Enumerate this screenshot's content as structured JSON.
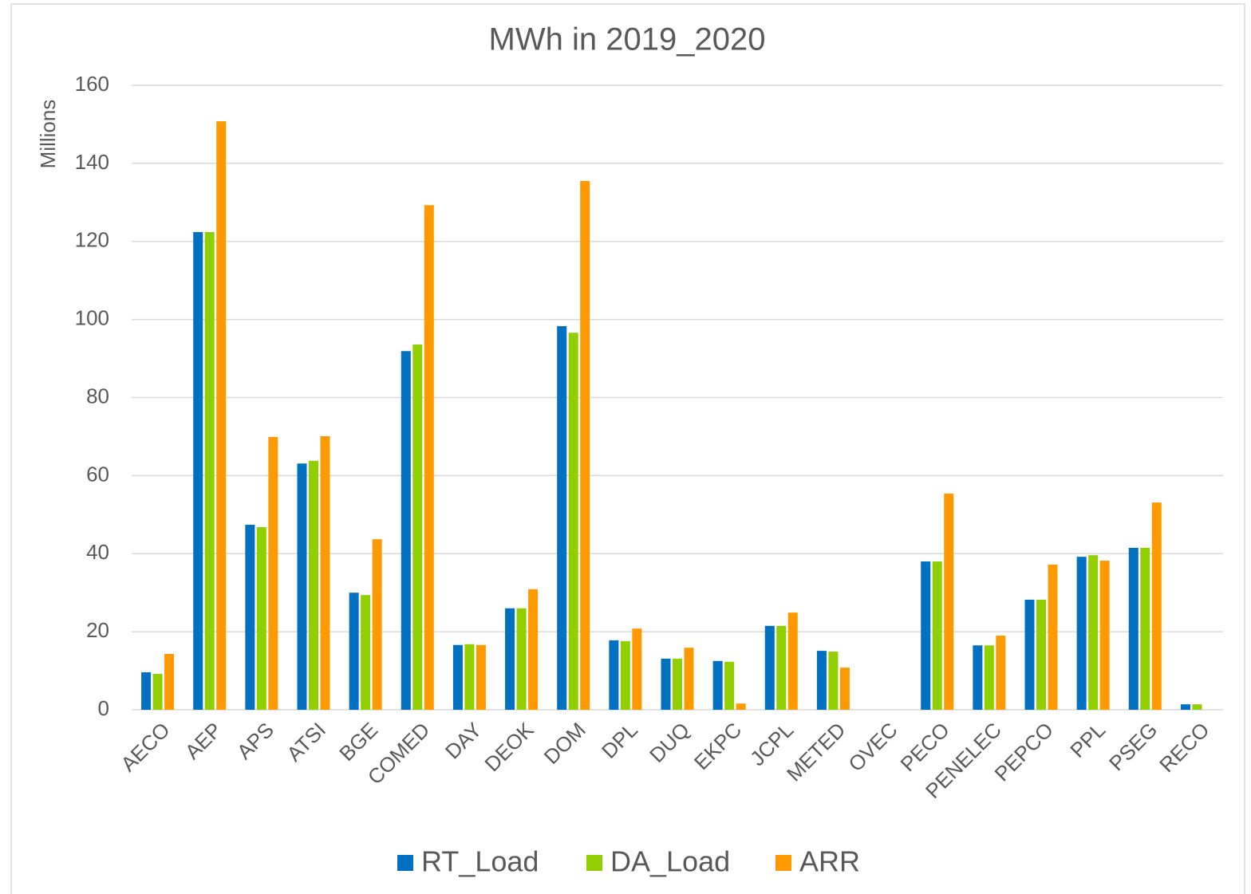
{
  "chart_data": {
    "type": "bar",
    "title": "MWh in 2019_2020",
    "y_axis_label": "Millions",
    "categories": [
      "AECO",
      "AEP",
      "APS",
      "ATSI",
      "BGE",
      "COMED",
      "DAY",
      "DEOK",
      "DOM",
      "DPL",
      "DUQ",
      "EKPC",
      "JCPL",
      "METED",
      "OVEC",
      "PECO",
      "PENELEC",
      "PEPCO",
      "PPL",
      "PSEG",
      "RECO"
    ],
    "series": [
      {
        "name": "RT_Load",
        "color": "#0070c0",
        "values": [
          9.6,
          122.4,
          47.4,
          63.1,
          30.0,
          91.9,
          16.6,
          26.0,
          98.3,
          17.8,
          13.1,
          12.5,
          21.5,
          15.1,
          0,
          38.0,
          16.5,
          28.2,
          39.2,
          41.5,
          1.4
        ]
      },
      {
        "name": "DA_Load",
        "color": "#92cf00",
        "values": [
          9.2,
          122.4,
          46.8,
          63.8,
          29.4,
          93.6,
          16.8,
          26.0,
          96.6,
          17.6,
          13.1,
          12.3,
          21.5,
          14.9,
          0,
          38.0,
          16.5,
          28.2,
          39.6,
          41.5,
          1.4
        ]
      },
      {
        "name": "ARR",
        "color": "#ff9900",
        "values": [
          14.3,
          150.8,
          69.9,
          70.1,
          43.7,
          129.3,
          16.6,
          30.9,
          135.5,
          20.8,
          15.9,
          1.6,
          24.9,
          10.8,
          0,
          55.4,
          19.0,
          37.2,
          38.2,
          53.1,
          0
        ]
      }
    ],
    "ylim": [
      0,
      160
    ],
    "yticks": [
      0,
      20,
      40,
      60,
      80,
      100,
      120,
      140,
      160
    ],
    "grid": true,
    "legend": "bottom"
  }
}
